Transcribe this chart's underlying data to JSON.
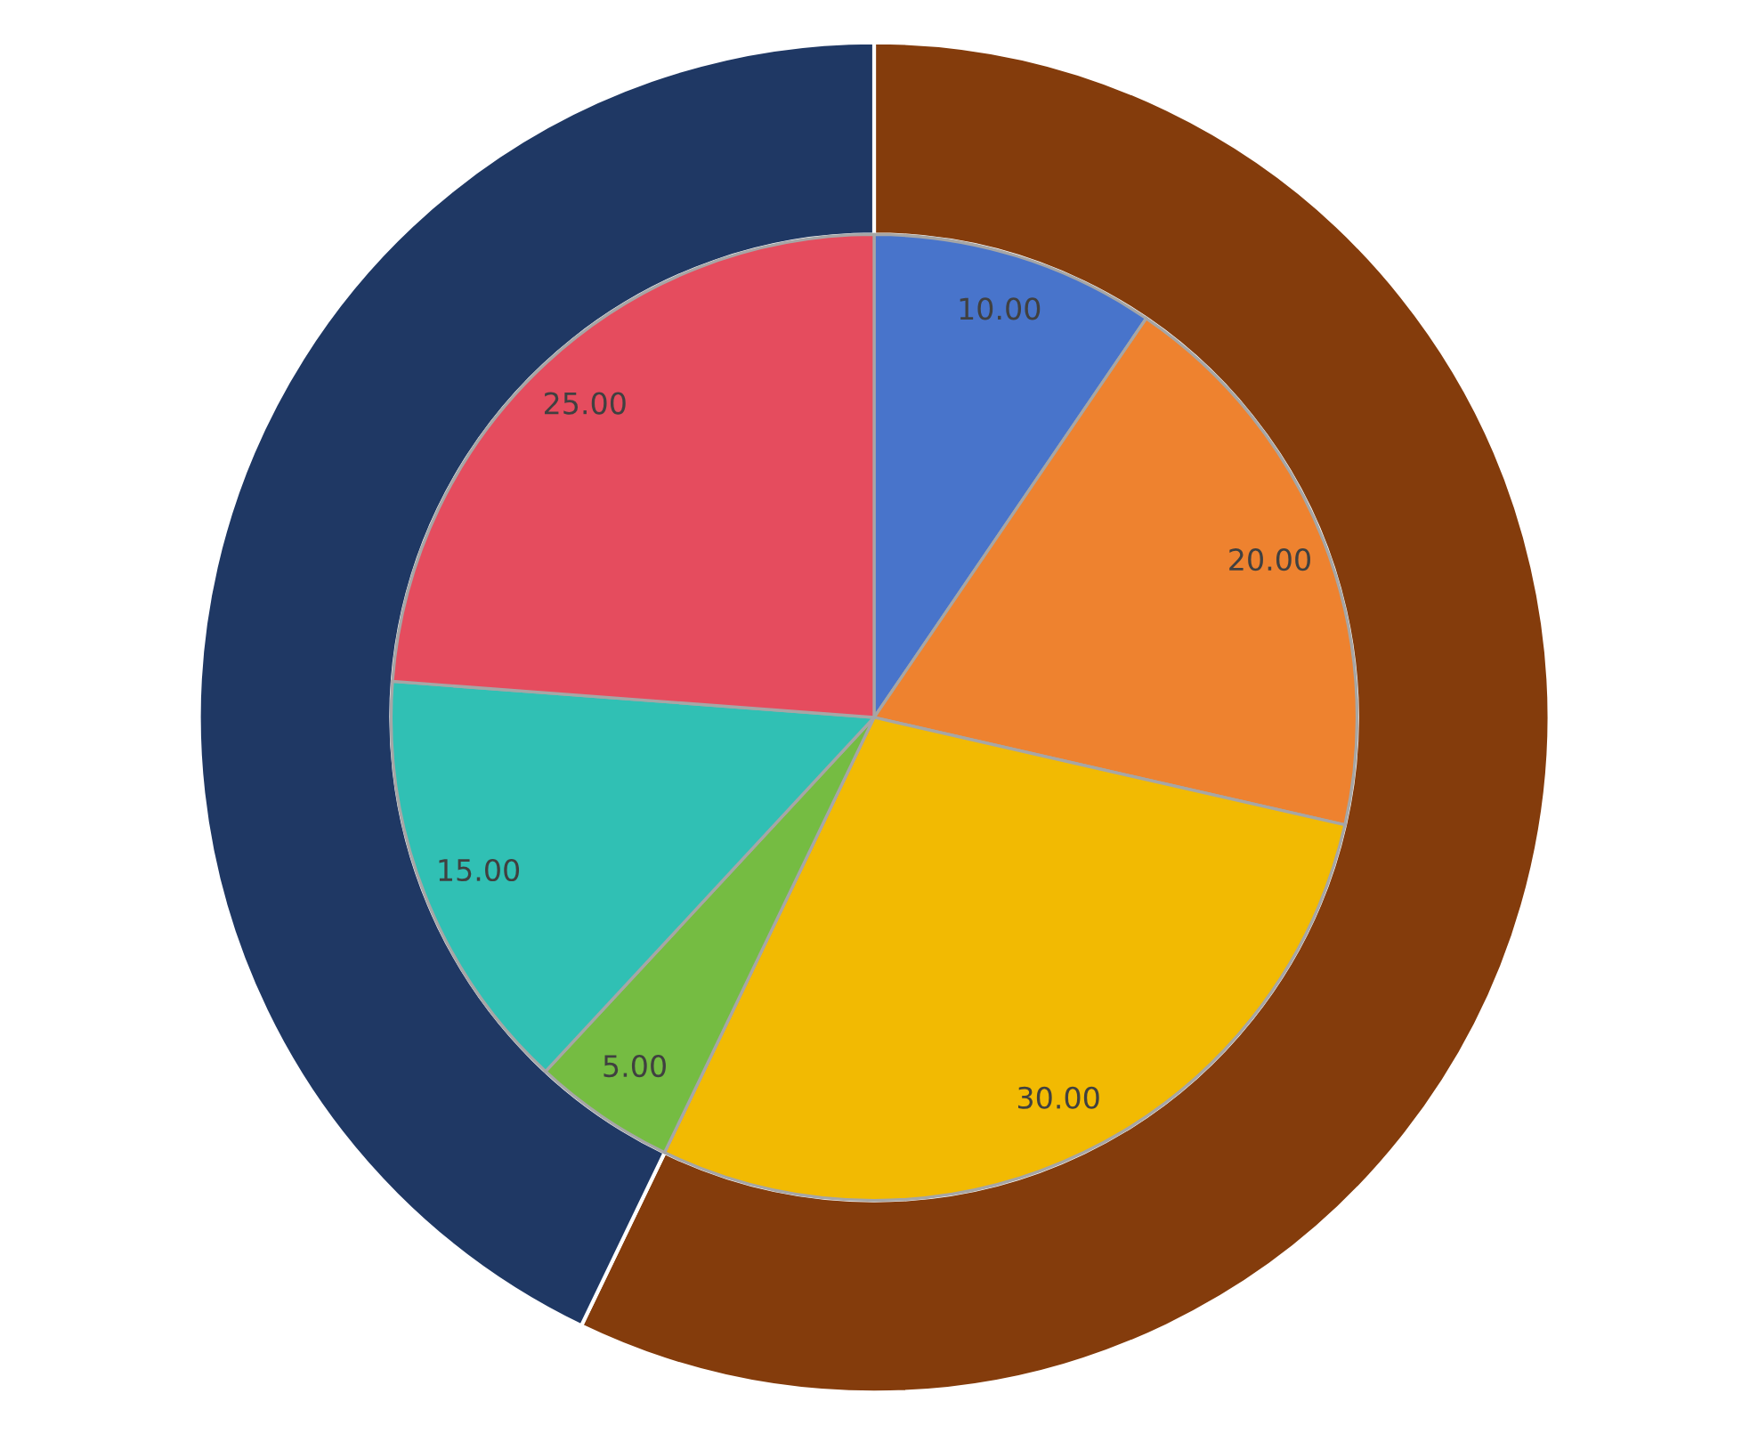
{
  "chart_data": {
    "type": "donut",
    "series": [
      {
        "type": "pie",
        "values": [
          10,
          20,
          30,
          5,
          15,
          25
        ],
        "value_labels": [
          "10.00",
          "20.00",
          "30.00",
          "5.00",
          "15.00",
          "25.00"
        ],
        "colors": [
          "#4874cb",
          "#ee822f",
          "#f2ba02",
          "#75bc42",
          "#30c0b4",
          "#e54c5e"
        ]
      },
      {
        "values": [
          57.14,
          42.86
        ],
        "colors": [
          "#843c0c",
          "#1f3864"
        ]
      }
    ]
  }
}
